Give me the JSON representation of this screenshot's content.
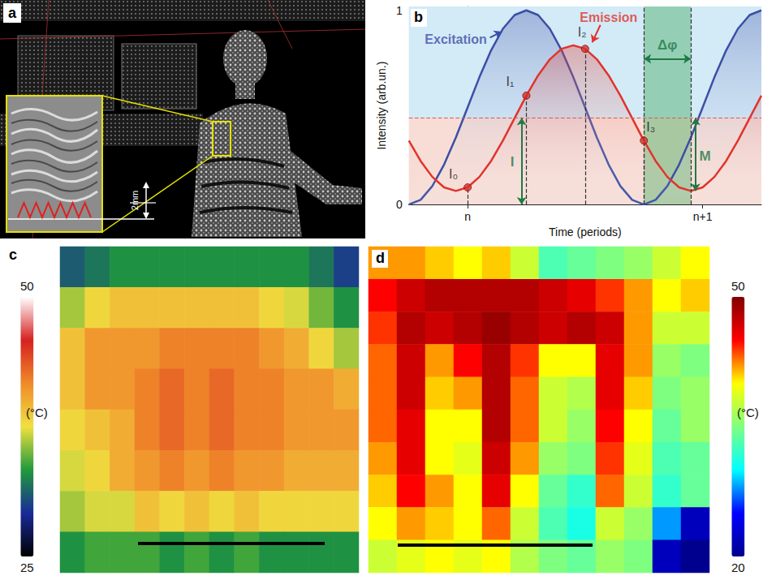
{
  "panel_a": {
    "letter": "a",
    "scale_label": "2mm"
  },
  "chart_data": [
    {
      "letter": "b",
      "type": "line",
      "xlabel": "Time (periods)",
      "ylabel": "Intensity (arb.un.)",
      "x": [
        -0.25,
        -0.2,
        -0.15,
        -0.1,
        -0.05,
        0,
        0.05,
        0.1,
        0.15,
        0.2,
        0.25,
        0.3,
        0.35,
        0.4,
        0.45,
        0.5,
        0.55,
        0.6,
        0.65,
        0.7,
        0.75,
        0.8,
        0.85,
        0.9,
        0.95,
        1,
        1.05,
        1.1,
        1.15,
        1.2,
        1.25
      ],
      "series": [
        {
          "name": "Excitation",
          "color": "#3b4fa6",
          "name_at": [
            -0.05,
            0.85
          ],
          "values": [
            0,
            0.024,
            0.095,
            0.206,
            0.345,
            0.5,
            0.655,
            0.794,
            0.905,
            0.976,
            1,
            0.976,
            0.905,
            0.794,
            0.655,
            0.5,
            0.345,
            0.206,
            0.095,
            0.024,
            0,
            0.024,
            0.095,
            0.206,
            0.345,
            0.5,
            0.655,
            0.794,
            0.905,
            0.976,
            1
          ]
        },
        {
          "name": "Emission",
          "color": "#e0342c",
          "name_at": [
            0.6,
            0.965
          ],
          "values": [
            0.329,
            0.224,
            0.142,
            0.088,
            0.07,
            0.088,
            0.142,
            0.224,
            0.329,
            0.445,
            0.561,
            0.665,
            0.748,
            0.802,
            0.82,
            0.802,
            0.748,
            0.665,
            0.561,
            0.445,
            0.329,
            0.224,
            0.142,
            0.088,
            0.07,
            0.088,
            0.142,
            0.224,
            0.329,
            0.445,
            0.561
          ]
        }
      ],
      "points": [
        {
          "label": "I₀",
          "x": 0,
          "y": 0.088
        },
        {
          "label": "I₁",
          "x": 0.25,
          "y": 0.561
        },
        {
          "label": "I₂",
          "x": 0.5,
          "y": 0.802
        },
        {
          "label": "I₃",
          "x": 0.75,
          "y": 0.329
        }
      ],
      "mean": 0.445,
      "band": [
        0.75,
        0.95
      ],
      "annotations": [
        {
          "text": "I",
          "x": 0.19,
          "y": 0.22,
          "arrow": [
            [
              0.23,
              0
            ],
            [
              0.23,
              0.445
            ]
          ]
        },
        {
          "text": "M",
          "x": 1.01,
          "y": 0.25,
          "arrow": [
            [
              0.97,
              0.07
            ],
            [
              0.97,
              0.445
            ]
          ]
        },
        {
          "text": "Δφ",
          "x": 0.85,
          "y": 0.82,
          "arrow": [
            [
              0.75,
              0.75
            ],
            [
              0.95,
              0.75
            ]
          ]
        }
      ],
      "xlim": [
        -0.25,
        1.25
      ],
      "ylim": [
        0,
        1.02
      ],
      "xticks": [
        {
          "value": 0,
          "label": "n"
        },
        {
          "value": 1,
          "label": "n+1"
        }
      ],
      "yticks": [
        0,
        1
      ],
      "grid": false
    },
    {
      "letter": "c",
      "type": "heatmap",
      "tick_labels": false,
      "cells": [
        [
          31,
          32,
          33,
          33,
          33,
          33,
          33,
          33,
          33,
          33,
          32,
          30
        ],
        [
          36,
          38,
          39,
          39,
          39,
          39,
          39,
          39,
          38,
          37,
          35,
          33
        ],
        [
          39,
          41,
          41,
          41,
          42,
          42,
          42,
          42,
          41,
          40,
          38,
          36
        ],
        [
          39,
          41,
          41,
          42,
          43,
          42,
          43,
          42,
          42,
          41,
          41,
          40
        ],
        [
          38,
          39,
          40,
          42,
          43,
          42,
          43,
          42,
          42,
          41,
          41,
          41
        ],
        [
          37,
          38,
          40,
          41,
          42,
          41,
          42,
          41,
          41,
          40,
          40,
          40
        ],
        [
          36,
          37,
          37,
          39,
          38,
          39,
          38,
          39,
          38,
          38,
          38,
          38
        ],
        [
          33,
          34,
          34,
          34,
          33,
          34,
          33,
          34,
          33,
          33,
          33,
          33
        ]
      ],
      "colorbar": {
        "range": [
          25,
          50
        ],
        "ticks": [
          25,
          50
        ],
        "label": "(°C)"
      }
    },
    {
      "letter": "d",
      "type": "heatmap",
      "tick_labels": false,
      "cells": [
        [
          42,
          42,
          41,
          40,
          41,
          38,
          33,
          34,
          35,
          36,
          38,
          40
        ],
        [
          45,
          47,
          48,
          48,
          48,
          48,
          47,
          46,
          44,
          42,
          40,
          41
        ],
        [
          44,
          48,
          47,
          48,
          49,
          48,
          47,
          48,
          47,
          42,
          38,
          38
        ],
        [
          43,
          47,
          42,
          45,
          48,
          44,
          40,
          40,
          46,
          42,
          36,
          35
        ],
        [
          43,
          47,
          41,
          42,
          48,
          43,
          38,
          37,
          46,
          41,
          35,
          36
        ],
        [
          43,
          46,
          40,
          40,
          48,
          43,
          38,
          36,
          45,
          40,
          34,
          36
        ],
        [
          42,
          46,
          40,
          39,
          47,
          42,
          36,
          35,
          44,
          39,
          33,
          34
        ],
        [
          41,
          45,
          42,
          40,
          46,
          40,
          34,
          32,
          43,
          38,
          32,
          34
        ],
        [
          40,
          42,
          41,
          40,
          43,
          38,
          33,
          31,
          38,
          36,
          28,
          22
        ],
        [
          38,
          39,
          40,
          39,
          40,
          37,
          35,
          34,
          36,
          35,
          22,
          20
        ]
      ],
      "colorbar": {
        "range": [
          20,
          50
        ],
        "ticks": [
          20,
          50
        ],
        "label": "(°C)"
      }
    }
  ]
}
